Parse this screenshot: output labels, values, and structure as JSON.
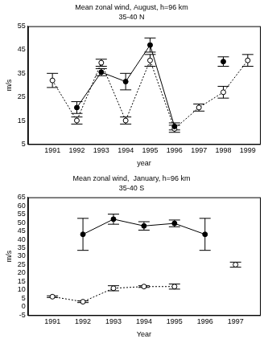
{
  "chart_data": [
    {
      "type": "line",
      "title": "Mean zonal wind, August, h=96 km",
      "subtitle": "35-40 N",
      "x_label": "year",
      "y_label": "m/s",
      "x": [
        1991,
        1992,
        1993,
        1994,
        1995,
        1996,
        1997,
        1998,
        1999
      ],
      "xlim": [
        1990,
        1999.5
      ],
      "xticks": [
        1991,
        1992,
        1993,
        1994,
        1995,
        1996,
        1997,
        1998,
        1999
      ],
      "ylim": [
        5,
        55
      ],
      "yticks": [
        5,
        15,
        25,
        35,
        45,
        55
      ],
      "grid": false,
      "series": [
        {
          "color": "#000000",
          "marker": "circle",
          "line_style": "solid",
          "values": [
            null,
            20.5,
            35.5,
            31.5,
            47,
            12.5,
            null,
            40,
            null
          ],
          "errors": [
            null,
            2.5,
            1.5,
            3.5,
            3,
            1.5,
            null,
            2,
            null
          ]
        },
        {
          "color": "#000000",
          "marker": "open_circle",
          "line_style": "dotted",
          "values": [
            32,
            15,
            39.5,
            15,
            40.5,
            11.5,
            20.5,
            27,
            40.5
          ],
          "errors": [
            3,
            1.5,
            1.5,
            1.5,
            2.5,
            1.5,
            1.5,
            2.5,
            2.5
          ]
        }
      ]
    },
    {
      "type": "line",
      "title": "Mean zonal wind,  January, h=96 km",
      "subtitle": "35-40 S",
      "x_label": "Year",
      "y_label": "m/s",
      "x": [
        1991,
        1992,
        1993,
        1994,
        1995,
        1996,
        1997
      ],
      "xlim": [
        1990.2,
        1997.8
      ],
      "xticks": [
        1991,
        1992,
        1993,
        1994,
        1995,
        1996,
        1997
      ],
      "ylim": [
        -5,
        65
      ],
      "yticks": [
        -5,
        0,
        5,
        10,
        15,
        20,
        25,
        30,
        35,
        40,
        45,
        50,
        55,
        60,
        65
      ],
      "grid": false,
      "series": [
        {
          "color": "#000000",
          "marker": "circle",
          "line_style": "solid",
          "values": [
            null,
            43,
            52,
            48,
            49.5,
            43,
            null
          ],
          "errors": [
            null,
            9.5,
            3,
            2.5,
            2,
            9.5,
            null
          ]
        },
        {
          "color": "#000000",
          "marker": "open_circle",
          "line_style": "dotted",
          "values": [
            6,
            3,
            11,
            12,
            12,
            null,
            25
          ],
          "errors": [
            0.5,
            0.5,
            1.5,
            0.5,
            1.5,
            null,
            1.5
          ]
        }
      ]
    }
  ]
}
